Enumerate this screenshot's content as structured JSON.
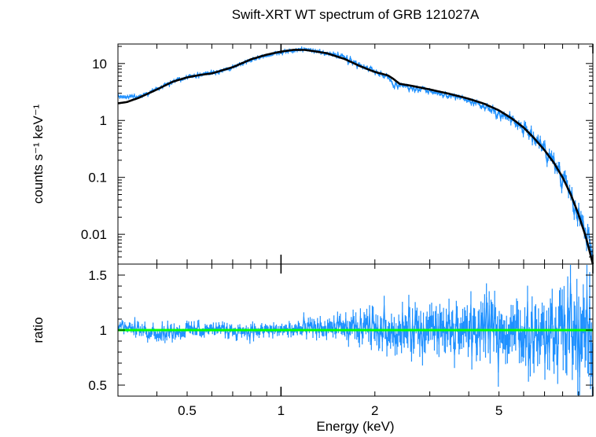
{
  "chart_data": [
    {
      "panel": "spectrum",
      "type": "line",
      "title": "Swift-XRT WT spectrum of GRB 121027A",
      "xlabel": "Energy (keV)",
      "ylabel": "counts s⁻¹ keV⁻¹",
      "x_scale": "log",
      "y_scale": "log",
      "xlim": [
        0.3,
        10.0
      ],
      "ylim": [
        0.003,
        22
      ],
      "y_ticks": [
        {
          "value": 10,
          "label": "10"
        },
        {
          "value": 1,
          "label": "1"
        },
        {
          "value": 0.1,
          "label": "0.1"
        },
        {
          "value": 0.01,
          "label": "0.01"
        }
      ],
      "series": [
        {
          "role": "data",
          "color": "#1e90ff",
          "x": [
            0.3,
            0.35,
            0.4,
            0.45,
            0.5,
            0.55,
            0.6,
            0.7,
            0.8,
            0.9,
            1.0,
            1.1,
            1.2,
            1.4,
            1.6,
            1.8,
            2.0,
            2.2,
            2.3,
            2.5,
            3.0,
            3.5,
            4.0,
            4.5,
            5.0,
            5.5,
            6.0,
            6.5,
            7.0,
            7.5,
            8.0,
            8.5,
            9.0,
            9.5,
            10.0
          ],
          "y": [
            2.6,
            2.6,
            3.6,
            4.8,
            5.8,
            6.3,
            6.8,
            8.5,
            11.5,
            14.0,
            16.0,
            17.3,
            17.5,
            15.5,
            12.5,
            9.0,
            7.2,
            5.7,
            4.3,
            4.0,
            3.3,
            2.7,
            2.2,
            1.75,
            1.4,
            1.0,
            0.72,
            0.48,
            0.31,
            0.19,
            0.11,
            0.06,
            0.028,
            0.012,
            0.005
          ]
        },
        {
          "role": "model",
          "color": "#000000",
          "x": [
            0.3,
            0.32,
            0.35,
            0.4,
            0.45,
            0.5,
            0.55,
            0.6,
            0.7,
            0.8,
            0.9,
            1.0,
            1.1,
            1.2,
            1.4,
            1.6,
            1.8,
            2.0,
            2.2,
            2.3,
            2.4,
            2.6,
            3.0,
            3.5,
            4.0,
            4.5,
            5.0,
            5.5,
            6.0,
            6.5,
            7.0,
            7.5,
            8.0,
            8.5,
            9.0,
            9.5,
            10.0
          ],
          "y": [
            2.0,
            2.1,
            2.5,
            3.5,
            4.8,
            5.7,
            6.3,
            6.7,
            8.6,
            11.8,
            14.3,
            16.2,
            17.4,
            17.3,
            15.2,
            12.0,
            8.9,
            7.1,
            6.2,
            5.3,
            4.4,
            4.1,
            3.5,
            2.9,
            2.4,
            1.95,
            1.5,
            1.08,
            0.75,
            0.48,
            0.3,
            0.18,
            0.1,
            0.05,
            0.022,
            0.009,
            0.003
          ]
        }
      ]
    },
    {
      "panel": "ratio",
      "type": "line",
      "xlabel": "Energy (keV)",
      "ylabel": "ratio",
      "x_scale": "log",
      "xlim": [
        0.3,
        10.0
      ],
      "ylim": [
        0.4,
        1.6
      ],
      "x_ticks": [
        {
          "value": 0.5,
          "label": "0.5"
        },
        {
          "value": 1,
          "label": "1"
        },
        {
          "value": 2,
          "label": "2"
        },
        {
          "value": 5,
          "label": "5"
        }
      ],
      "y_ticks": [
        {
          "value": 1.5,
          "label": "1.5"
        },
        {
          "value": 1,
          "label": "1"
        },
        {
          "value": 0.5,
          "label": "0.5"
        }
      ],
      "series": [
        {
          "role": "data",
          "color": "#1e90ff",
          "x": [
            0.3,
            0.35,
            0.4,
            0.5,
            0.6,
            0.8,
            1.0,
            1.5,
            2.0,
            2.5,
            3.0,
            4.0,
            5.0,
            6.0,
            7.0,
            8.0,
            9.0,
            10.0
          ],
          "y": [
            1.05,
            1.0,
            0.98,
            1.0,
            1.01,
            0.99,
            1.0,
            1.02,
            1.0,
            1.01,
            0.98,
            1.0,
            1.02,
            0.97,
            1.0,
            1.03,
            0.95,
            1.0
          ],
          "scatter": [
            0.04,
            0.06,
            0.07,
            0.07,
            0.06,
            0.06,
            0.06,
            0.1,
            0.16,
            0.2,
            0.22,
            0.24,
            0.26,
            0.28,
            0.3,
            0.36,
            0.42,
            0.5
          ]
        },
        {
          "role": "unity",
          "color": "#00ff00",
          "x": [
            0.3,
            10.0
          ],
          "y": [
            1.0,
            1.0
          ]
        }
      ]
    }
  ]
}
